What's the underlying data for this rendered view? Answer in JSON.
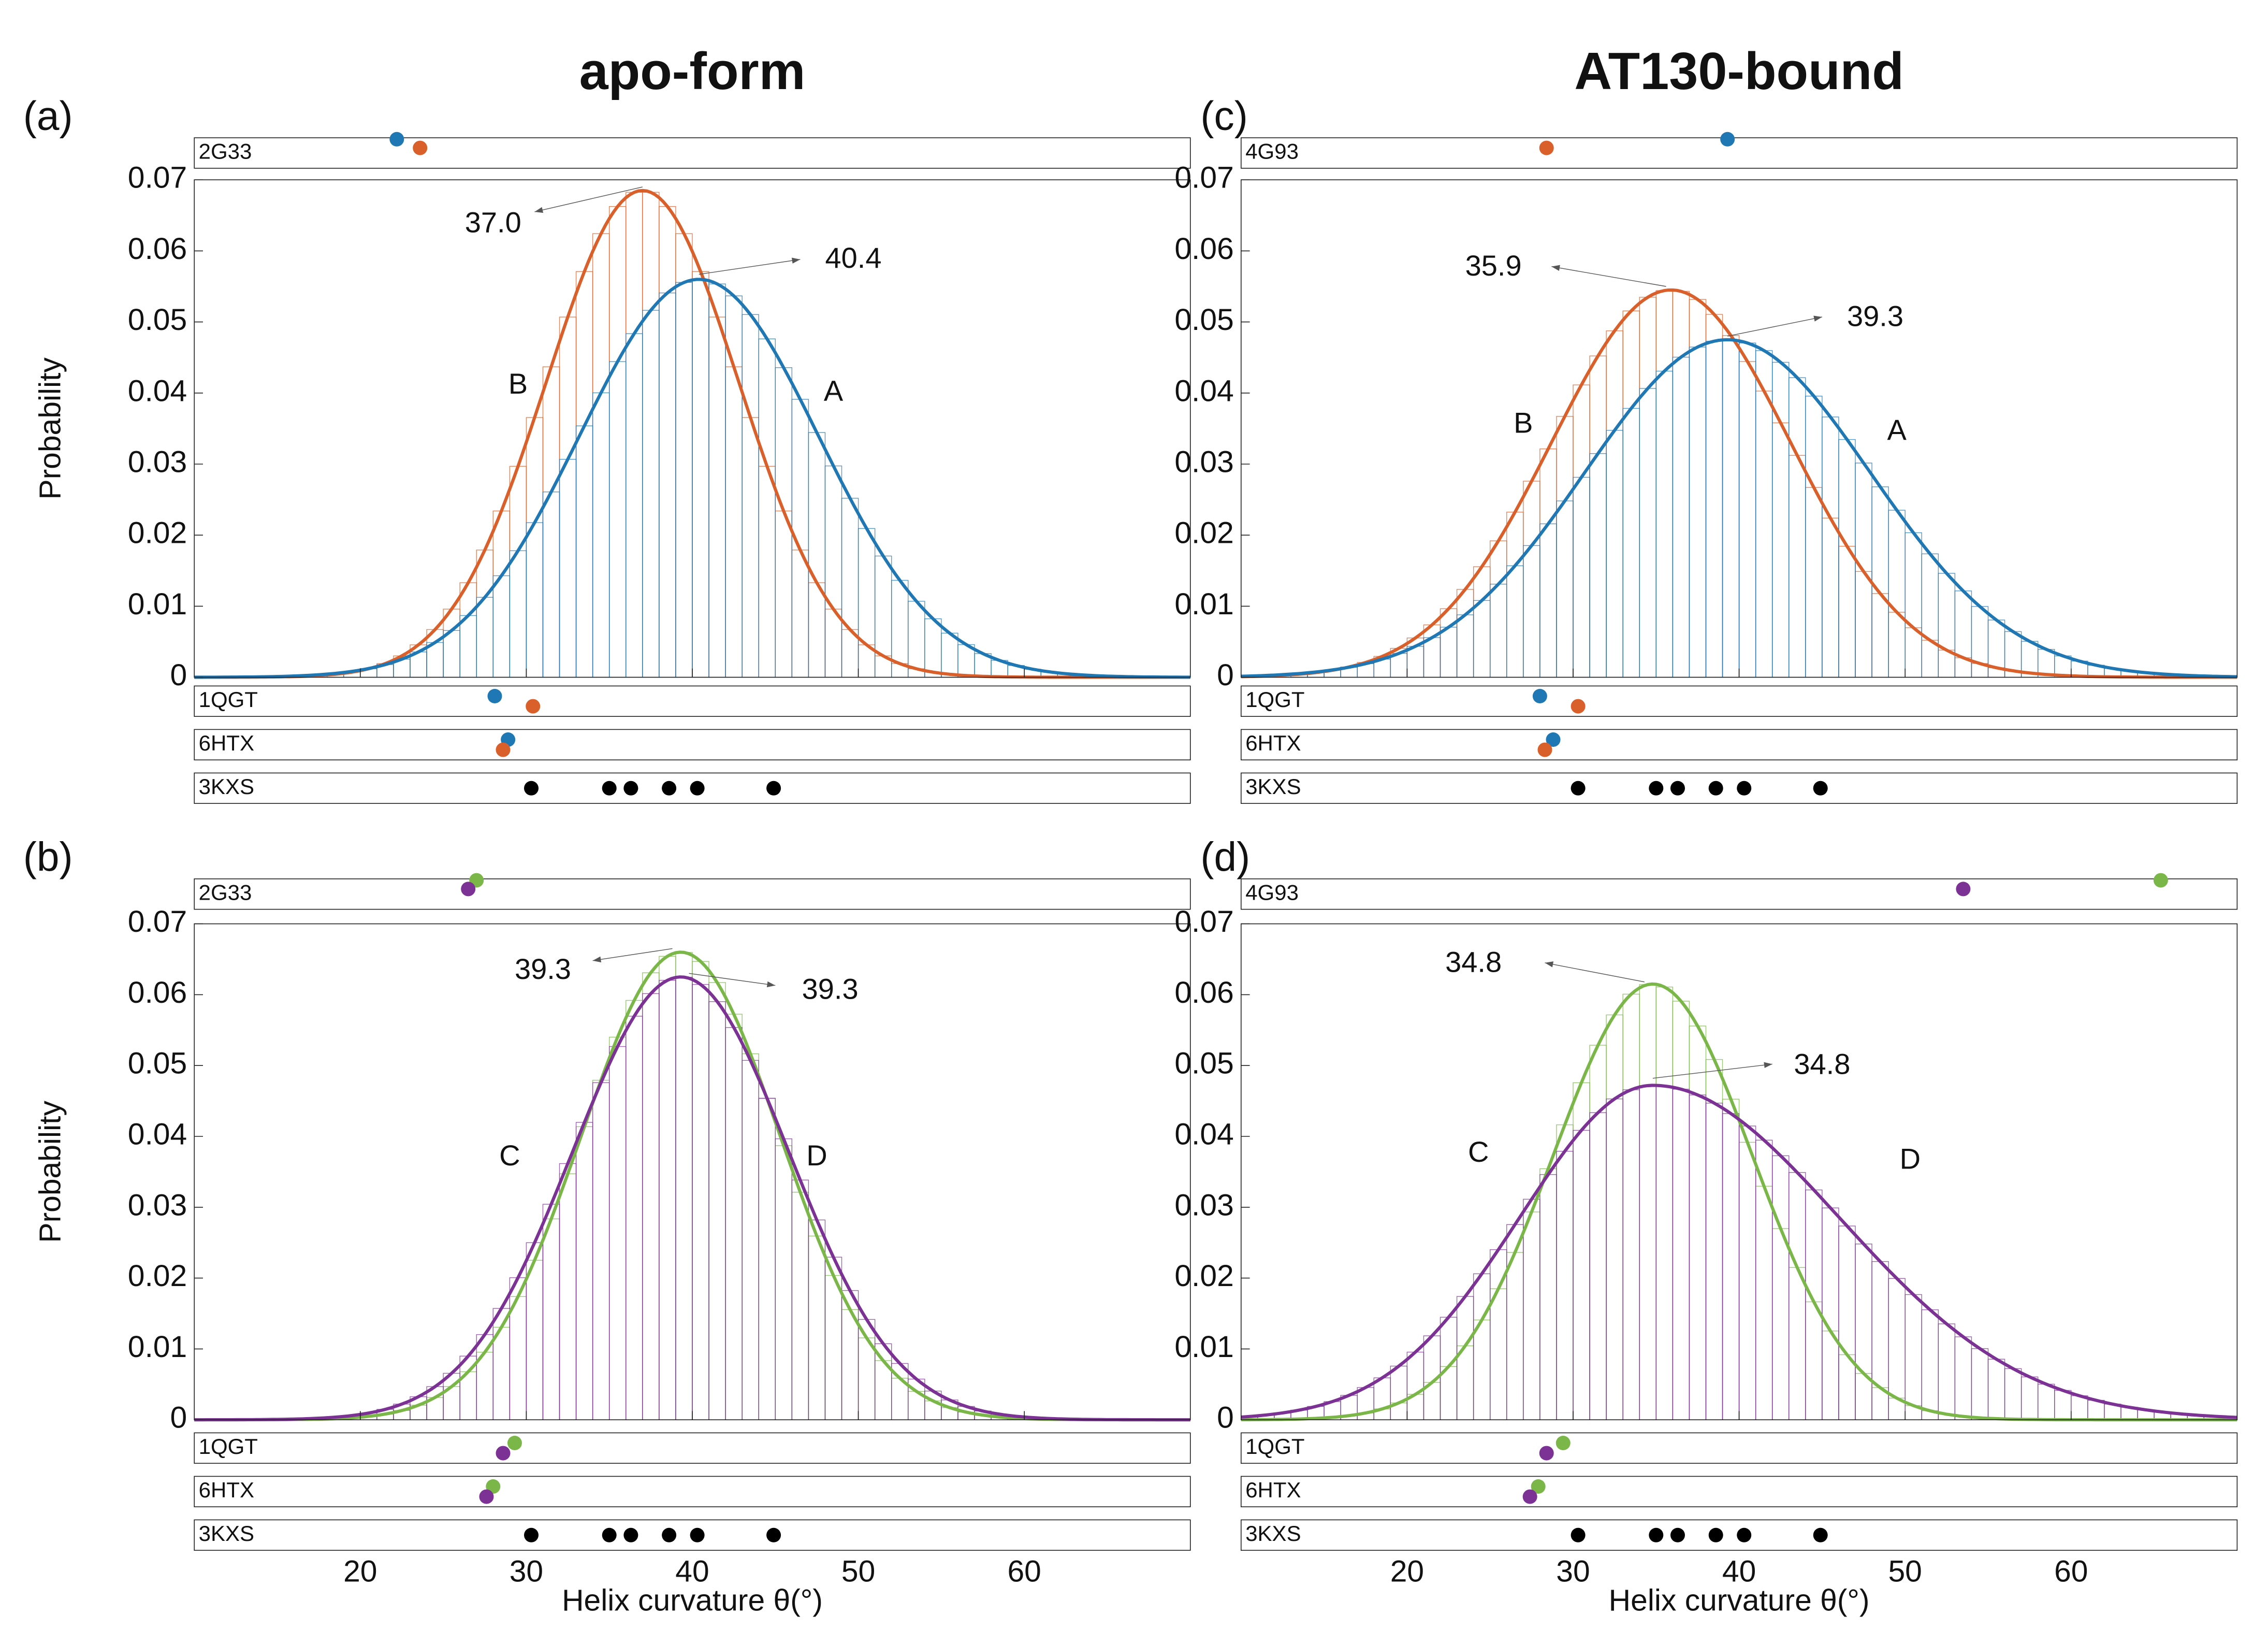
{
  "columns": [
    "apo-form",
    "AT130-bound"
  ],
  "xlabel": "Helix curvature θ(°)",
  "ylabel": "Probability",
  "colors": {
    "A": "#1f77b4",
    "B": "#d95f2b",
    "C": "#7ab648",
    "D": "#7b3294",
    "ref": "#000000"
  },
  "chart_data": [
    {
      "type": "bar",
      "panel_label": "(a)",
      "column_title": "apo-form",
      "xlim": [
        10,
        70
      ],
      "ylim": [
        0,
        0.07
      ],
      "xticks": [
        20,
        30,
        40,
        50,
        60
      ],
      "yticks": [
        0,
        0.01,
        0.02,
        0.03,
        0.04,
        0.05,
        0.06,
        0.07
      ],
      "ytick_labels": [
        "0",
        "0.01",
        "0.02",
        "0.03",
        "0.04",
        "0.05",
        "0.06",
        "0.07"
      ],
      "series": [
        {
          "name": "B",
          "color": "#d95f2b",
          "peak_x": 37.0,
          "peak_y": 0.0685,
          "width": 5.8,
          "skew": 1.0,
          "peak_label": "37.0",
          "label_x": 29.5,
          "label_y": 0.041
        },
        {
          "name": "A",
          "color": "#1f77b4",
          "peak_x": 40.4,
          "peak_y": 0.056,
          "width": 7.2,
          "skew": 1.0,
          "peak_label": "40.4",
          "label_x": 48.5,
          "label_y": 0.04
        }
      ],
      "annotations": [
        {
          "text": "37.0",
          "from_x": 37.0,
          "from_y": 0.069,
          "to_x": 30.5,
          "to_y": 0.0655,
          "text_x": 26.3,
          "text_y": 0.0637
        },
        {
          "text": "40.4",
          "from_x": 40.4,
          "from_y": 0.0567,
          "to_x": 46.5,
          "to_y": 0.0588,
          "text_x": 48.0,
          "text_y": 0.0587
        }
      ],
      "strips_top": [
        {
          "label": "2G33",
          "points": [
            {
              "x": 22.2,
              "series": "A",
              "level": "upper"
            },
            {
              "x": 23.6,
              "series": "B",
              "level": "lower"
            }
          ]
        }
      ],
      "strips_bottom": [
        {
          "label": "1QGT",
          "points": [
            {
              "x": 28.1,
              "series": "A",
              "level": "upper"
            },
            {
              "x": 30.4,
              "series": "B",
              "level": "lower"
            }
          ]
        },
        {
          "label": "6HTX",
          "points": [
            {
              "x": 28.9,
              "series": "A",
              "level": "upper"
            },
            {
              "x": 28.6,
              "series": "B",
              "level": "lower"
            }
          ]
        },
        {
          "label": "3KXS",
          "points": [
            {
              "x": 30.3,
              "series": "ref",
              "level": "mid"
            },
            {
              "x": 35.0,
              "series": "ref",
              "level": "mid"
            },
            {
              "x": 36.3,
              "series": "ref",
              "level": "mid"
            },
            {
              "x": 38.6,
              "series": "ref",
              "level": "mid"
            },
            {
              "x": 40.3,
              "series": "ref",
              "level": "mid"
            },
            {
              "x": 44.9,
              "series": "ref",
              "level": "mid"
            }
          ]
        }
      ]
    },
    {
      "type": "bar",
      "panel_label": "(b)",
      "column_title": "apo-form",
      "xlim": [
        10,
        70
      ],
      "ylim": [
        0,
        0.07
      ],
      "xticks": [
        20,
        30,
        40,
        50,
        60
      ],
      "yticks": [
        0,
        0.01,
        0.02,
        0.03,
        0.04,
        0.05,
        0.06,
        0.07
      ],
      "ytick_labels": [
        "0",
        "0.01",
        "0.02",
        "0.03",
        "0.04",
        "0.05",
        "0.06",
        "0.07"
      ],
      "series": [
        {
          "name": "C",
          "color": "#7ab648",
          "peak_x": 39.3,
          "peak_y": 0.066,
          "width": 6.0,
          "skew": 1.0,
          "peak_label": "39.3",
          "label_x": 29.0,
          "label_y": 0.037
        },
        {
          "name": "D",
          "color": "#7b3294",
          "peak_x": 39.3,
          "peak_y": 0.0625,
          "width": 6.5,
          "skew": 1.0,
          "peak_label": "39.3",
          "label_x": 47.5,
          "label_y": 0.037
        }
      ],
      "annotations": [
        {
          "text": "39.3",
          "from_x": 38.8,
          "from_y": 0.0665,
          "to_x": 34.0,
          "to_y": 0.0648,
          "text_x": 29.3,
          "text_y": 0.0633
        },
        {
          "text": "39.3",
          "from_x": 39.8,
          "from_y": 0.063,
          "to_x": 45.0,
          "to_y": 0.0613,
          "text_x": 46.6,
          "text_y": 0.0605
        }
      ],
      "strips_top": [
        {
          "label": "2G33",
          "points": [
            {
              "x": 27.0,
              "series": "C",
              "level": "upper"
            },
            {
              "x": 26.5,
              "series": "D",
              "level": "lower"
            }
          ]
        }
      ],
      "strips_bottom": [
        {
          "label": "1QGT",
          "points": [
            {
              "x": 29.3,
              "series": "C",
              "level": "upper"
            },
            {
              "x": 28.6,
              "series": "D",
              "level": "lower"
            }
          ]
        },
        {
          "label": "6HTX",
          "points": [
            {
              "x": 28.0,
              "series": "C",
              "level": "upper"
            },
            {
              "x": 27.6,
              "series": "D",
              "level": "lower"
            }
          ]
        },
        {
          "label": "3KXS",
          "points": [
            {
              "x": 30.3,
              "series": "ref",
              "level": "mid"
            },
            {
              "x": 35.0,
              "series": "ref",
              "level": "mid"
            },
            {
              "x": 36.3,
              "series": "ref",
              "level": "mid"
            },
            {
              "x": 38.6,
              "series": "ref",
              "level": "mid"
            },
            {
              "x": 40.3,
              "series": "ref",
              "level": "mid"
            },
            {
              "x": 44.9,
              "series": "ref",
              "level": "mid"
            }
          ]
        }
      ]
    },
    {
      "type": "bar",
      "panel_label": "(c)",
      "column_title": "AT130-bound",
      "xlim": [
        10,
        70
      ],
      "ylim": [
        0,
        0.07
      ],
      "xticks": [
        20,
        30,
        40,
        50,
        60
      ],
      "yticks": [
        0,
        0.01,
        0.02,
        0.03,
        0.04,
        0.05,
        0.06,
        0.07
      ],
      "ytick_labels": [],
      "series": [
        {
          "name": "B",
          "color": "#d95f2b",
          "peak_x": 35.9,
          "peak_y": 0.0545,
          "width": 7.2,
          "skew": 1.0,
          "peak_label": "35.9",
          "label_x": 27.0,
          "label_y": 0.0355
        },
        {
          "name": "A",
          "color": "#1f77b4",
          "peak_x": 39.3,
          "peak_y": 0.0475,
          "width": 8.6,
          "skew": 1.0,
          "peak_label": "39.3",
          "label_x": 49.5,
          "label_y": 0.0345
        }
      ],
      "annotations": [
        {
          "text": "35.9",
          "from_x": 35.6,
          "from_y": 0.055,
          "to_x": 28.7,
          "to_y": 0.0578,
          "text_x": 23.5,
          "text_y": 0.0576
        },
        {
          "text": "39.3",
          "from_x": 39.3,
          "from_y": 0.048,
          "to_x": 45.0,
          "to_y": 0.0507,
          "text_x": 46.5,
          "text_y": 0.0505
        }
      ],
      "strips_top": [
        {
          "label": "4G93",
          "points": [
            {
              "x": 39.3,
              "series": "A",
              "level": "upper"
            },
            {
              "x": 28.4,
              "series": "B",
              "level": "lower"
            }
          ]
        }
      ],
      "strips_bottom": [
        {
          "label": "1QGT",
          "points": [
            {
              "x": 28.0,
              "series": "A",
              "level": "upper"
            },
            {
              "x": 30.3,
              "series": "B",
              "level": "lower"
            }
          ]
        },
        {
          "label": "6HTX",
          "points": [
            {
              "x": 28.8,
              "series": "A",
              "level": "upper"
            },
            {
              "x": 28.3,
              "series": "B",
              "level": "lower"
            }
          ]
        },
        {
          "label": "3KXS",
          "points": [
            {
              "x": 30.3,
              "series": "ref",
              "level": "mid"
            },
            {
              "x": 35.0,
              "series": "ref",
              "level": "mid"
            },
            {
              "x": 36.3,
              "series": "ref",
              "level": "mid"
            },
            {
              "x": 38.6,
              "series": "ref",
              "level": "mid"
            },
            {
              "x": 40.3,
              "series": "ref",
              "level": "mid"
            },
            {
              "x": 44.9,
              "series": "ref",
              "level": "mid"
            }
          ]
        }
      ]
    },
    {
      "type": "bar",
      "panel_label": "(d)",
      "column_title": "AT130-bound",
      "xlim": [
        10,
        70
      ],
      "ylim": [
        0,
        0.07
      ],
      "xticks": [
        20,
        30,
        40,
        50,
        60
      ],
      "yticks": [
        0,
        0.01,
        0.02,
        0.03,
        0.04,
        0.05,
        0.06,
        0.07
      ],
      "ytick_labels": [],
      "series": [
        {
          "name": "C",
          "color": "#7ab648",
          "peak_x": 34.8,
          "peak_y": 0.0615,
          "width": 6.0,
          "skew": 1.0,
          "peak_label": "34.8",
          "label_x": 24.3,
          "label_y": 0.0375
        },
        {
          "name": "D",
          "color": "#7b3294",
          "peak_x": 34.8,
          "peak_y": 0.0472,
          "width": 8.0,
          "skew": 1.4,
          "peak_label": "34.8",
          "label_x": 50.3,
          "label_y": 0.0365
        }
      ],
      "annotations": [
        {
          "text": "34.8",
          "from_x": 34.3,
          "from_y": 0.0618,
          "to_x": 28.3,
          "to_y": 0.0645,
          "text_x": 22.3,
          "text_y": 0.0643
        },
        {
          "text": "34.8",
          "from_x": 34.8,
          "from_y": 0.0482,
          "to_x": 42.0,
          "to_y": 0.0502,
          "text_x": 43.3,
          "text_y": 0.0499
        }
      ],
      "strips_top": [
        {
          "label": "4G93",
          "points": [
            {
              "x": 65.4,
              "series": "C",
              "level": "upper"
            },
            {
              "x": 53.5,
              "series": "D",
              "level": "lower"
            }
          ]
        }
      ],
      "strips_bottom": [
        {
          "label": "1QGT",
          "points": [
            {
              "x": 29.4,
              "series": "C",
              "level": "upper"
            },
            {
              "x": 28.4,
              "series": "D",
              "level": "lower"
            }
          ]
        },
        {
          "label": "6HTX",
          "points": [
            {
              "x": 27.9,
              "series": "C",
              "level": "upper"
            },
            {
              "x": 27.4,
              "series": "D",
              "level": "lower"
            }
          ]
        },
        {
          "label": "3KXS",
          "points": [
            {
              "x": 30.3,
              "series": "ref",
              "level": "mid"
            },
            {
              "x": 35.0,
              "series": "ref",
              "level": "mid"
            },
            {
              "x": 36.3,
              "series": "ref",
              "level": "mid"
            },
            {
              "x": 38.6,
              "series": "ref",
              "level": "mid"
            },
            {
              "x": 40.3,
              "series": "ref",
              "level": "mid"
            },
            {
              "x": 44.9,
              "series": "ref",
              "level": "mid"
            }
          ]
        }
      ]
    }
  ]
}
